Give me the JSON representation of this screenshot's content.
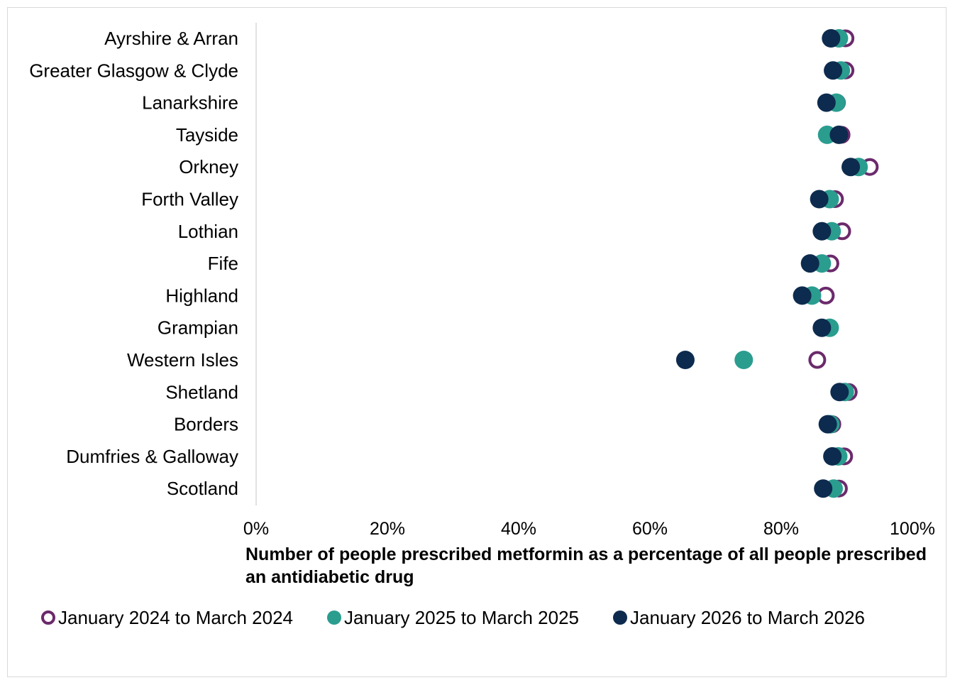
{
  "chart_data": {
    "type": "scatter",
    "orientation": "horizontal-dot-plot",
    "categories": [
      "Ayrshire & Arran",
      "Greater Glasgow & Clyde",
      "Lanarkshire",
      "Tayside",
      "Orkney",
      "Forth Valley",
      "Lothian",
      "Fife",
      "Highland",
      "Grampian",
      "Western Isles",
      "Shetland",
      "Borders",
      "Dumfries & Galloway",
      "Scotland"
    ],
    "series": [
      {
        "name": "January 2024 to March 2024",
        "marker": "hollow",
        "color": "#6b2a6b",
        "values": [
          0.898,
          0.898,
          0.885,
          0.892,
          0.935,
          0.882,
          0.893,
          0.875,
          0.868,
          0.873,
          0.855,
          0.903,
          0.878,
          0.896,
          0.888
        ]
      },
      {
        "name": "January 2025 to March 2025",
        "marker": "filled",
        "color": "#2a9d8f",
        "values": [
          0.888,
          0.891,
          0.884,
          0.87,
          0.918,
          0.874,
          0.877,
          0.862,
          0.847,
          0.874,
          0.743,
          0.897,
          0.875,
          0.887,
          0.88
        ]
      },
      {
        "name": "January 2026 to March 2026",
        "marker": "filled",
        "color": "#0d2b4e",
        "values": [
          0.876,
          0.879,
          0.869,
          0.888,
          0.906,
          0.858,
          0.862,
          0.844,
          0.832,
          0.862,
          0.654,
          0.889,
          0.871,
          0.878,
          0.864
        ]
      }
    ],
    "xticks": [
      "0%",
      "20%",
      "40%",
      "60%",
      "80%",
      "100%"
    ],
    "xlim": [
      0,
      1
    ],
    "xlabel": "Number of people prescribed metformin as a percentage of all people prescribed an antidiabetic drug",
    "legend_position": "bottom",
    "grid": false
  }
}
